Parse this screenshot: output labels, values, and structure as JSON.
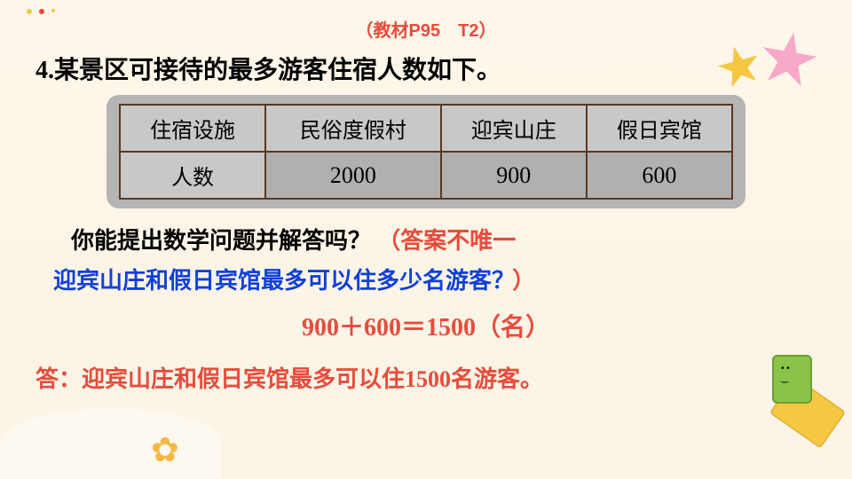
{
  "source_ref": "（教材P95　T2）",
  "question": {
    "number": "4.",
    "text": "某景区可接待的最多游客住宿人数如下。"
  },
  "table": {
    "columns": [
      "住宿设施",
      "民俗度假村",
      "迎宾山庄",
      "假日宾馆"
    ],
    "rows": [
      [
        "人数",
        "2000",
        "900",
        "600"
      ]
    ],
    "border_color": "#5a3820",
    "header_bg": "#c8c8c8",
    "cell_bg": "#b0b0b0",
    "wrap_bg": "#b5b5b5"
  },
  "prompt": {
    "black": "你能提出数学问题并解答吗？",
    "note_part1": "（答案不唯一",
    "note_part2": "）"
  },
  "sub_question": "迎宾山庄和假日宾馆最多可以住多少名游客？",
  "calculation": {
    "lhs": "900＋600＝1500",
    "unit": "（名）"
  },
  "answer": {
    "label": "答：",
    "text": "迎宾山庄和假日宾馆最多可以住1500名游客。"
  },
  "colors": {
    "red": "#e74c3c",
    "blue": "#1040d8",
    "black": "#000000",
    "bg": "#fdf6ea",
    "star_yellow": "#f5c842",
    "star_pink": "#f8a8c8"
  }
}
